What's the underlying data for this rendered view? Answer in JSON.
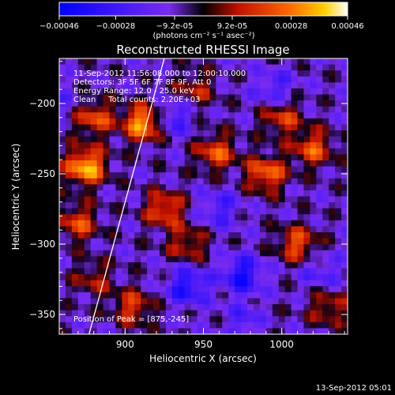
{
  "colorbar": {
    "ticks": [
      "-0.00046",
      "-0.00028",
      "-9.2e-05",
      "9.2e-05",
      "0.00028",
      "0.00046"
    ],
    "units": "(photons cm⁻² s⁻¹ asec⁻²)",
    "range": [
      -0.00046,
      0.00046
    ]
  },
  "chart_data": {
    "type": "heatmap",
    "title": "Reconstructed RHESSI Image",
    "xlabel": "Heliocentric X (arcsec)",
    "ylabel": "Heliocentric Y (arcsec)",
    "xlim": [
      858,
      1042
    ],
    "ylim": [
      -364,
      -168
    ],
    "x_ticks": [
      "900",
      "950",
      "1000"
    ],
    "y_ticks": [
      "-200",
      "-250",
      "-300",
      "-350"
    ],
    "annotations": [
      "11-Sep-2012 11:56:08.000 to 12:00:10.000",
      "Detectors: 3F 5F 6F 7F 8F 9F, Att 0",
      "Energy Range: 12.0 - 25.0 keV",
      "Clean     Total counts: 2.20E+03"
    ],
    "peak_label": "Position of Peak = [875,-245]",
    "peak": [
      875,
      -245
    ],
    "limb_line": [
      [
        877,
        -364
      ],
      [
        925,
        -168
      ]
    ],
    "hot_spots": [
      {
        "x": 875,
        "y": -245,
        "value": 0.00046
      },
      {
        "x": 912,
        "y": -214,
        "value": 0.00044
      },
      {
        "x": 880,
        "y": -210,
        "value": 0.0003
      },
      {
        "x": 870,
        "y": -285,
        "value": 0.00028
      },
      {
        "x": 958,
        "y": -235,
        "value": 0.0003
      },
      {
        "x": 990,
        "y": -250,
        "value": 0.00034
      },
      {
        "x": 1020,
        "y": -232,
        "value": 0.0003
      },
      {
        "x": 1000,
        "y": -210,
        "value": 0.00026
      },
      {
        "x": 925,
        "y": -275,
        "value": 0.0003
      },
      {
        "x": 940,
        "y": -300,
        "value": 0.00022
      },
      {
        "x": 1010,
        "y": -300,
        "value": 0.0003
      },
      {
        "x": 1030,
        "y": -345,
        "value": 0.00022
      },
      {
        "x": 985,
        "y": -355,
        "value": 0.00016
      },
      {
        "x": 905,
        "y": -345,
        "value": 0.00026
      },
      {
        "x": 880,
        "y": -325,
        "value": 0.00018
      },
      {
        "x": 945,
        "y": -190,
        "value": 0.0002
      }
    ],
    "cold_spots": [
      {
        "x": 940,
        "y": -330,
        "value": -0.00028
      },
      {
        "x": 975,
        "y": -322,
        "value": -0.0003
      },
      {
        "x": 980,
        "y": -355,
        "value": -0.00028
      },
      {
        "x": 930,
        "y": -210,
        "value": -0.00022
      },
      {
        "x": 960,
        "y": -275,
        "value": -0.00018
      },
      {
        "x": 995,
        "y": -190,
        "value": -0.00018
      },
      {
        "x": 1025,
        "y": -320,
        "value": -0.00015
      },
      {
        "x": 862,
        "y": -200,
        "value": -0.0001
      }
    ],
    "grid": false
  },
  "footer": {
    "timestamp": "13-Sep-2012 05:01"
  }
}
